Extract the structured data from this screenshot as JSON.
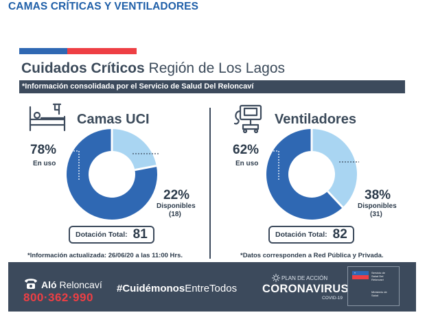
{
  "page_heading": "CAMAS CRÍTICAS Y VENTILADORES",
  "card": {
    "title_bold": "Cuidados Críticos",
    "title_regular": " Región de Los Lagos",
    "info_bar": "*Información consolidada por el Servicio de Salud Del Reloncaví",
    "colors": {
      "dark_blue": "#2f68b3",
      "light_blue": "#a9d5f2",
      "bar": "#3c4a5c",
      "flag_blue": "#2f68b3",
      "flag_red": "#ee3f44"
    }
  },
  "camas": {
    "label": "Camas UCI",
    "icon": "hospital-bed-icon",
    "in_use_pct": "78%",
    "in_use_label": "En uso",
    "available_pct": "22%",
    "available_label": "Disponibles",
    "available_count": "(18)",
    "in_use_fraction": 0.78,
    "total_label": "Dotación Total:",
    "total_value": "81",
    "footnote": "*Información actualizada: 26/06/20 a las 11:00 Hrs."
  },
  "ventiladores": {
    "label": "Ventiladores",
    "icon": "ventilator-icon",
    "in_use_pct": "62%",
    "in_use_label": "En uso",
    "available_pct": "38%",
    "available_label": "Disponibles",
    "available_count": "(31)",
    "in_use_fraction": 0.62,
    "total_label": "Dotación Total:",
    "total_value": "82",
    "footnote": "*Datos corresponden a Red Pública y Privada."
  },
  "footer": {
    "alo_bold": "Aló",
    "alo_regular": " Reloncaví",
    "phone": "800·362·990",
    "hashtag_bold": "#Cuidémonos",
    "hashtag_regular": "EntreTodos",
    "plan_label": "PLAN DE ACCIÓN",
    "coronavirus_label": "CORONAVIRUS",
    "covid_label": "COVID-19",
    "gov_line1": "Servicio de",
    "gov_line2": "Salud Del",
    "gov_line3": "Reloncaví",
    "gov_line4": "Ministerio de",
    "gov_line5": "Salud"
  }
}
